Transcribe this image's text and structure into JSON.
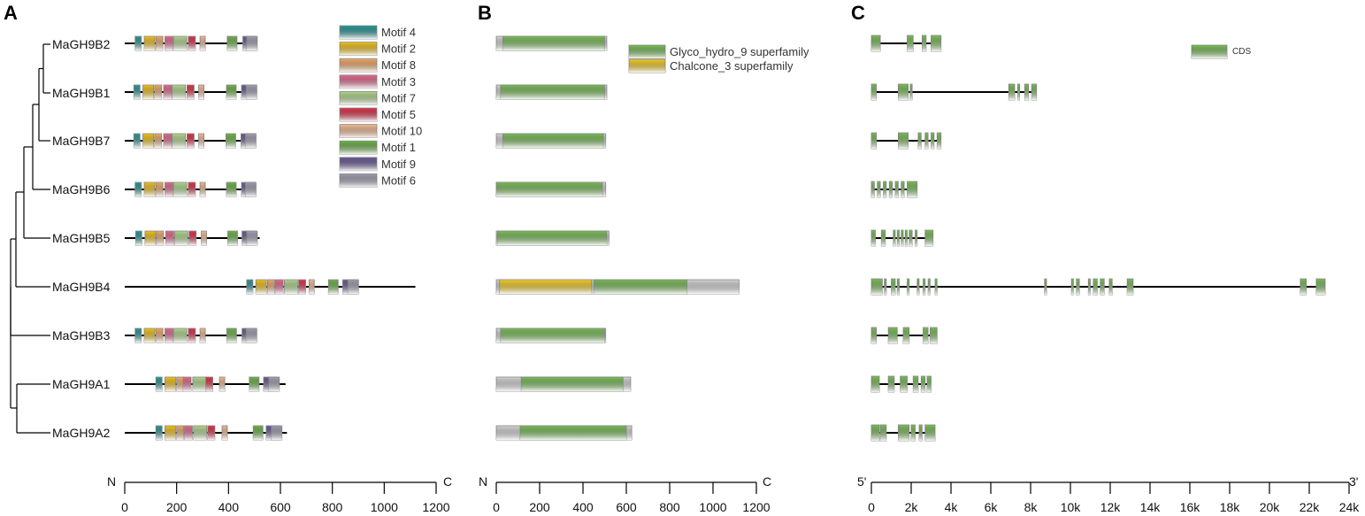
{
  "panels": [
    "A",
    "B",
    "C"
  ],
  "genes": [
    "MaGH9B2",
    "MaGH9B1",
    "MaGH9B7",
    "MaGH9B6",
    "MaGH9B5",
    "MaGH9B4",
    "MaGH9B3",
    "MaGH9A1",
    "MaGH9A2"
  ],
  "motif_legend": [
    {
      "label": "Motif 4",
      "color": "#2a9a98"
    },
    {
      "label": "Motif 2",
      "color": "#f4c51b"
    },
    {
      "label": "Motif 8",
      "color": "#f4ad6b"
    },
    {
      "label": "Motif 3",
      "color": "#e86b91"
    },
    {
      "label": "Motif 7",
      "color": "#b5da90"
    },
    {
      "label": "Motif 5",
      "color": "#e0364d"
    },
    {
      "label": "Motif 10",
      "color": "#f6be94"
    },
    {
      "label": "Motif 1",
      "color": "#6fb54c"
    },
    {
      "label": "Motif 9",
      "color": "#6d5e97"
    },
    {
      "label": "Motif 6",
      "color": "#a3a1b2"
    }
  ],
  "domain_legend": [
    {
      "label": "Glyco_hydro_9 superfamily",
      "color": "#7cbf5a"
    },
    {
      "label": "Chalcone_3 superfamily",
      "color": "#f8d028"
    }
  ],
  "cds_legend": {
    "label": "CDS",
    "color": "#7cbf5a"
  },
  "axis_a": {
    "left_end": "N",
    "right_end": "C",
    "ticks": [
      0,
      200,
      400,
      600,
      800,
      1000,
      1200
    ],
    "tick_labels": [
      "0",
      "200",
      "400",
      "600",
      "800",
      "1000",
      "1200"
    ]
  },
  "axis_b": {
    "left_end": "N",
    "right_end": "C",
    "ticks": [
      0,
      200,
      400,
      600,
      800,
      1000,
      1200
    ],
    "tick_labels": [
      "0",
      "200",
      "400",
      "600",
      "800",
      "1000",
      "1200"
    ]
  },
  "axis_c": {
    "left_end": "5'",
    "right_end": "3'",
    "ticks": [
      0,
      2000,
      4000,
      6000,
      8000,
      10000,
      12000,
      14000,
      16000,
      18000,
      20000,
      22000,
      24000
    ],
    "tick_labels": [
      "0",
      "2k",
      "4k",
      "6k",
      "8k",
      "10k",
      "12k",
      "14k",
      "16k",
      "18k",
      "20k",
      "22k",
      "24k"
    ]
  },
  "proteins": [
    {
      "gene": "MaGH9B2",
      "length": 510,
      "motifs": [
        [
          40,
          4
        ],
        [
          75,
          2
        ],
        [
          120,
          8
        ],
        [
          155,
          3
        ],
        [
          188,
          7
        ],
        [
          245,
          5
        ],
        [
          290,
          10
        ],
        [
          395,
          1
        ],
        [
          455,
          9
        ],
        [
          470,
          6
        ]
      ],
      "domains": [
        {
          "start": 30,
          "end": 500,
          "type": "Glyco_hydro_9 superfamily"
        }
      ]
    },
    {
      "gene": "MaGH9B1",
      "length": 510,
      "motifs": [
        [
          35,
          4
        ],
        [
          70,
          2
        ],
        [
          115,
          8
        ],
        [
          150,
          3
        ],
        [
          183,
          7
        ],
        [
          240,
          5
        ],
        [
          285,
          10
        ],
        [
          392,
          1
        ],
        [
          450,
          9
        ],
        [
          468,
          6
        ]
      ],
      "domains": [
        {
          "start": 20,
          "end": 500,
          "type": "Glyco_hydro_9 superfamily"
        }
      ]
    },
    {
      "gene": "MaGH9B7",
      "length": 505,
      "motifs": [
        [
          35,
          4
        ],
        [
          70,
          2
        ],
        [
          115,
          8
        ],
        [
          150,
          3
        ],
        [
          183,
          7
        ],
        [
          240,
          5
        ],
        [
          285,
          10
        ],
        [
          390,
          1
        ],
        [
          448,
          9
        ],
        [
          465,
          6
        ]
      ],
      "domains": [
        {
          "start": 30,
          "end": 495,
          "type": "Glyco_hydro_9 superfamily"
        }
      ]
    },
    {
      "gene": "MaGH9B6",
      "length": 505,
      "motifs": [
        [
          40,
          4
        ],
        [
          75,
          2
        ],
        [
          120,
          8
        ],
        [
          155,
          3
        ],
        [
          188,
          7
        ],
        [
          245,
          5
        ],
        [
          290,
          10
        ],
        [
          392,
          1
        ],
        [
          450,
          9
        ],
        [
          465,
          6
        ]
      ],
      "domains": [
        {
          "start": 0,
          "end": 490,
          "type": "Glyco_hydro_9 superfamily"
        }
      ]
    },
    {
      "gene": "MaGH9B5",
      "length": 520,
      "motifs": [
        [
          42,
          4
        ],
        [
          78,
          2
        ],
        [
          122,
          8
        ],
        [
          158,
          3
        ],
        [
          192,
          7
        ],
        [
          248,
          5
        ],
        [
          295,
          10
        ],
        [
          397,
          1
        ],
        [
          452,
          9
        ],
        [
          470,
          6
        ]
      ],
      "domains": [
        {
          "start": 5,
          "end": 510,
          "type": "Glyco_hydro_9 superfamily"
        }
      ]
    },
    {
      "gene": "MaGH9B4",
      "length": 1120,
      "motifs": [
        [
          470,
          4
        ],
        [
          505,
          2
        ],
        [
          550,
          8
        ],
        [
          580,
          3
        ],
        [
          615,
          7
        ],
        [
          670,
          5
        ],
        [
          710,
          10
        ],
        [
          785,
          1
        ],
        [
          840,
          9
        ],
        [
          860,
          6
        ]
      ],
      "domains": [
        {
          "start": 15,
          "end": 440,
          "type": "Chalcone_3 superfamily"
        },
        {
          "start": 450,
          "end": 880,
          "type": "Glyco_hydro_9 superfamily"
        }
      ]
    },
    {
      "gene": "MaGH9B3",
      "length": 505,
      "motifs": [
        [
          40,
          4
        ],
        [
          75,
          2
        ],
        [
          120,
          8
        ],
        [
          155,
          3
        ],
        [
          188,
          7
        ],
        [
          245,
          5
        ],
        [
          290,
          10
        ],
        [
          393,
          1
        ],
        [
          452,
          9
        ],
        [
          468,
          6
        ]
      ],
      "domains": [
        {
          "start": 20,
          "end": 500,
          "type": "Glyco_hydro_9 superfamily"
        }
      ]
    },
    {
      "gene": "MaGH9A1",
      "length": 620,
      "motifs": [
        [
          120,
          4
        ],
        [
          155,
          2
        ],
        [
          200,
          8
        ],
        [
          225,
          3
        ],
        [
          262,
          7
        ],
        [
          312,
          5
        ],
        [
          365,
          10
        ],
        [
          480,
          1
        ],
        [
          535,
          9
        ],
        [
          555,
          6
        ]
      ],
      "domains": [
        {
          "start": 115,
          "end": 585,
          "type": "Glyco_hydro_9 superfamily"
        }
      ]
    },
    {
      "gene": "MaGH9A2",
      "length": 625,
      "motifs": [
        [
          120,
          4
        ],
        [
          155,
          2
        ],
        [
          200,
          8
        ],
        [
          230,
          3
        ],
        [
          265,
          7
        ],
        [
          320,
          5
        ],
        [
          375,
          10
        ],
        [
          495,
          1
        ],
        [
          545,
          9
        ],
        [
          565,
          6
        ]
      ],
      "domains": [
        {
          "start": 110,
          "end": 600,
          "type": "Glyco_hydro_9 superfamily"
        }
      ]
    }
  ],
  "gene_structures": [
    {
      "gene": "MaGH9B2",
      "length_bp": 3500,
      "exons": [
        [
          0,
          450
        ],
        [
          1800,
          2100
        ],
        [
          2550,
          2750
        ],
        [
          3000,
          3500
        ]
      ]
    },
    {
      "gene": "MaGH9B1",
      "length_bp": 8300,
      "exons": [
        [
          0,
          250
        ],
        [
          1350,
          1850
        ],
        [
          1950,
          2050
        ],
        [
          6900,
          7200
        ],
        [
          7350,
          7450
        ],
        [
          7700,
          7900
        ],
        [
          8050,
          8300
        ]
      ]
    },
    {
      "gene": "MaGH9B7",
      "length_bp": 3500,
      "exons": [
        [
          0,
          250
        ],
        [
          1350,
          1850
        ],
        [
          2350,
          2500
        ],
        [
          2700,
          2850
        ],
        [
          3000,
          3150
        ],
        [
          3300,
          3500
        ]
      ]
    },
    {
      "gene": "MaGH9B6",
      "length_bp": 2300,
      "exons": [
        [
          0,
          150
        ],
        [
          300,
          450
        ],
        [
          600,
          750
        ],
        [
          900,
          1050
        ],
        [
          1200,
          1350
        ],
        [
          1500,
          1650
        ],
        [
          1800,
          2300
        ]
      ]
    },
    {
      "gene": "MaGH9B5",
      "length_bp": 3100,
      "exons": [
        [
          0,
          200
        ],
        [
          500,
          700
        ],
        [
          1100,
          1200
        ],
        [
          1300,
          1400
        ],
        [
          1500,
          1600
        ],
        [
          1700,
          1800
        ],
        [
          1900,
          2050
        ],
        [
          2200,
          2300
        ],
        [
          2700,
          3100
        ]
      ]
    },
    {
      "gene": "MaGH9B4",
      "length_bp": 22800,
      "exons": [
        [
          0,
          550
        ],
        [
          650,
          750
        ],
        [
          1000,
          1200
        ],
        [
          1300,
          1400
        ],
        [
          1800,
          1900
        ],
        [
          2300,
          2400
        ],
        [
          2600,
          2700
        ],
        [
          2850,
          2950
        ],
        [
          3200,
          3300
        ],
        [
          8700,
          8800
        ],
        [
          10050,
          10150
        ],
        [
          10300,
          10450
        ],
        [
          10900,
          11000
        ],
        [
          11150,
          11350
        ],
        [
          11500,
          11700
        ],
        [
          11950,
          12100
        ],
        [
          12850,
          13150
        ],
        [
          21550,
          21850
        ],
        [
          22350,
          22800
        ]
      ]
    },
    {
      "gene": "MaGH9B3",
      "length_bp": 3300,
      "exons": [
        [
          0,
          250
        ],
        [
          850,
          1300
        ],
        [
          1600,
          1900
        ],
        [
          2600,
          2850
        ],
        [
          2950,
          3300
        ]
      ]
    },
    {
      "gene": "MaGH9A1",
      "length_bp": 3000,
      "exons": [
        [
          0,
          400
        ],
        [
          850,
          1150
        ],
        [
          1450,
          1800
        ],
        [
          2100,
          2350
        ],
        [
          2500,
          2700
        ],
        [
          2800,
          3000
        ]
      ]
    },
    {
      "gene": "MaGH9A2",
      "length_bp": 3200,
      "exons": [
        [
          0,
          400
        ],
        [
          450,
          750
        ],
        [
          1350,
          1900
        ],
        [
          2000,
          2200
        ],
        [
          2400,
          2550
        ],
        [
          2700,
          3200
        ]
      ]
    }
  ]
}
